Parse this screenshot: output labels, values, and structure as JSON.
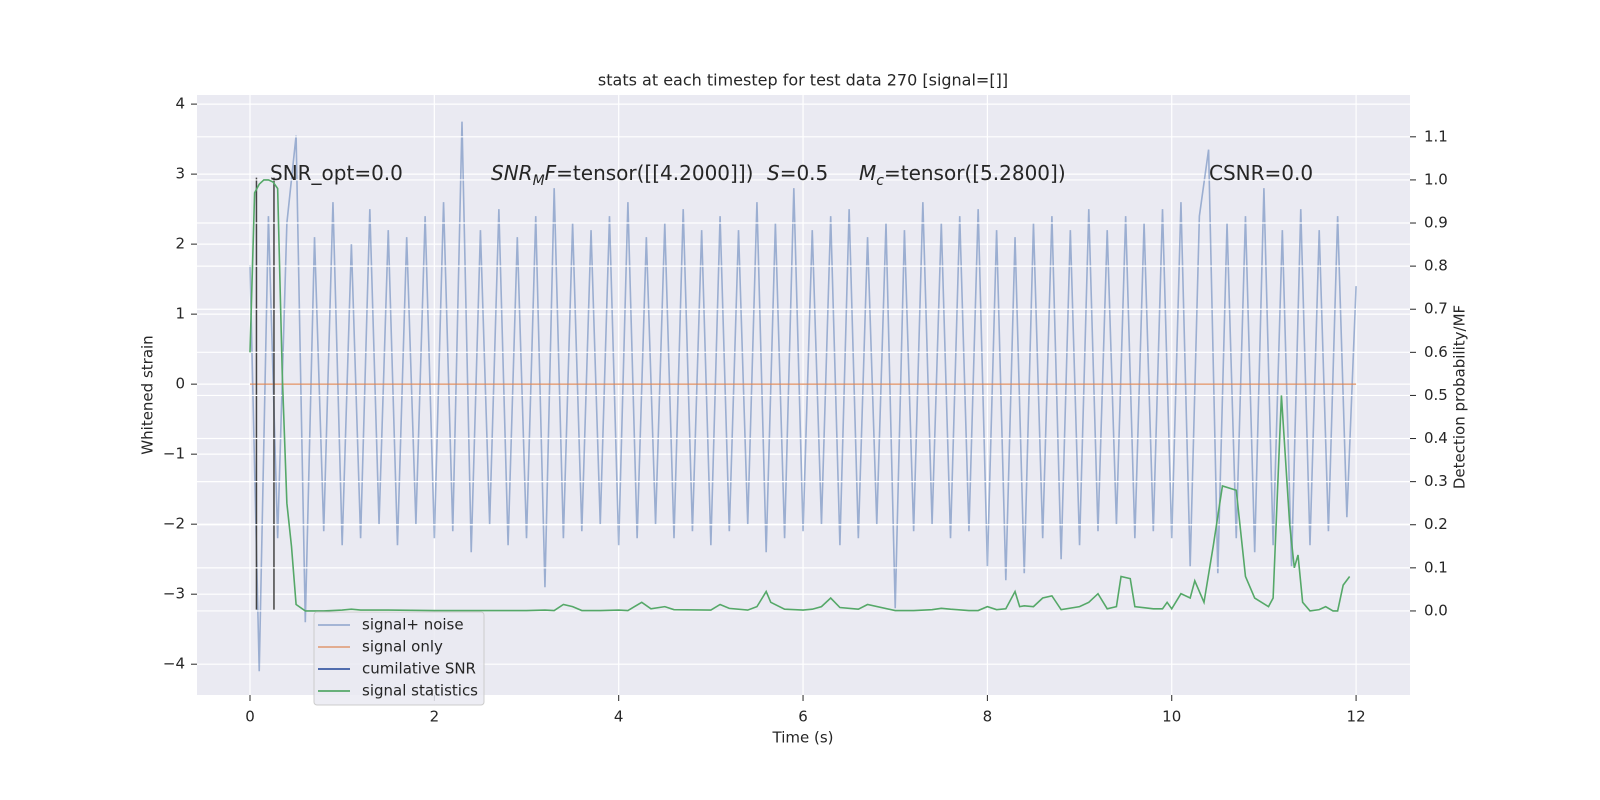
{
  "chart_data": {
    "type": "line",
    "title": "stats at each timestep for test data 270 [signal=[]]",
    "x_label": "Time (s)",
    "y_label": "Whitened strain",
    "y2_label": "Detection probability/MF",
    "xlim": [
      -0.575,
      12.585
    ],
    "ylim": [
      -4.44,
      4.13
    ],
    "y2lim": [
      -0.195,
      1.197
    ],
    "xticks": [
      0,
      2,
      4,
      6,
      8,
      10,
      12
    ],
    "yticks": [
      {
        "value": -4,
        "label": "−4"
      },
      {
        "value": -3,
        "label": "−3"
      },
      {
        "value": -2,
        "label": "−2"
      },
      {
        "value": -1,
        "label": "−1"
      },
      0,
      1,
      2,
      3,
      4
    ],
    "y2ticks": [
      {
        "value": 0,
        "label": "0.0"
      },
      {
        "value": 0.1,
        "label": "0.1"
      },
      {
        "value": 0.2,
        "label": "0.2"
      },
      {
        "value": 0.3,
        "label": "0.3"
      },
      {
        "value": 0.4,
        "label": "0.4"
      },
      {
        "value": 0.5,
        "label": "0.5"
      },
      {
        "value": 0.6,
        "label": "0.6"
      },
      {
        "value": 0.7,
        "label": "0.7"
      },
      {
        "value": 0.8,
        "label": "0.8"
      },
      {
        "value": 0.9,
        "label": "0.9"
      },
      {
        "value": 1,
        "label": "1.0"
      },
      {
        "value": 1.1,
        "label": "1.1"
      }
    ],
    "grid": true,
    "series": [
      {
        "name": "signal+ noise",
        "color": "#4c72b0",
        "opacity": 0.5,
        "x": [
          0,
          0.1,
          0.2,
          0.3,
          0.4,
          0.5,
          0.6,
          0.7,
          0.8,
          0.9,
          1,
          1.1,
          1.2,
          1.3,
          1.4,
          1.5,
          1.6,
          1.7,
          1.8,
          1.9,
          2,
          2.1,
          2.2,
          2.3,
          2.4,
          2.5,
          2.6,
          2.7,
          2.8,
          2.9,
          3,
          3.1,
          3.2,
          3.3,
          3.4,
          3.5,
          3.6,
          3.7,
          3.8,
          3.9,
          4,
          4.1,
          4.2,
          4.3,
          4.4,
          4.5,
          4.6,
          4.7,
          4.8,
          4.9,
          5,
          5.1,
          5.2,
          5.3,
          5.4,
          5.5,
          5.6,
          5.7,
          5.8,
          5.9,
          6,
          6.1,
          6.2,
          6.3,
          6.4,
          6.5,
          6.6,
          6.7,
          6.8,
          6.9,
          7,
          7.1,
          7.2,
          7.3,
          7.4,
          7.5,
          7.6,
          7.7,
          7.8,
          7.9,
          8,
          8.1,
          8.2,
          8.3,
          8.4,
          8.5,
          8.6,
          8.7,
          8.8,
          8.9,
          9,
          9.1,
          9.2,
          9.3,
          9.4,
          9.5,
          9.6,
          9.7,
          9.8,
          9.9,
          10,
          10.1,
          10.2,
          10.3,
          10.4,
          10.5,
          10.6,
          10.7,
          10.8,
          10.9,
          11,
          11.1,
          11.2,
          11.3,
          11.4,
          11.5,
          11.6,
          11.7,
          11.8,
          11.9,
          12
        ],
        "values": [
          1.7,
          -4.1,
          2.4,
          -2.2,
          2.3,
          3.55,
          -3.4,
          2.1,
          -2.1,
          2.6,
          -2.3,
          2.0,
          -2.2,
          2.5,
          -2.0,
          2.2,
          -2.3,
          2.1,
          -2.0,
          2.4,
          -2.2,
          2.6,
          -2.1,
          3.75,
          -2.4,
          2.2,
          -2.0,
          2.5,
          -2.3,
          2.1,
          -2.2,
          2.4,
          -2.9,
          2.8,
          -2.2,
          2.3,
          -2.1,
          2.2,
          -2.0,
          2.4,
          -2.3,
          2.6,
          -2.2,
          2.1,
          -2.0,
          2.3,
          -2.2,
          2.5,
          -2.1,
          2.2,
          -2.3,
          2.4,
          -2.1,
          2.2,
          -2.0,
          2.6,
          -2.4,
          2.3,
          -2.2,
          2.8,
          -2.1,
          2.2,
          -2.0,
          2.4,
          -2.3,
          2.5,
          -2.2,
          2.1,
          -2.0,
          2.3,
          -3.2,
          2.2,
          -2.1,
          2.6,
          -2.0,
          2.3,
          -2.2,
          2.4,
          -2.1,
          2.5,
          -2.6,
          2.2,
          -2.8,
          2.1,
          -2.7,
          2.3,
          -2.2,
          2.4,
          -2.5,
          2.2,
          -2.3,
          2.5,
          -2.1,
          2.2,
          -2.0,
          2.4,
          -2.2,
          2.3,
          -2.1,
          2.5,
          -2.2,
          2.6,
          -2.6,
          2.4,
          3.35,
          -2.7,
          2.3,
          -2.2,
          2.4,
          -2.4,
          2.8,
          -2.3,
          2.2,
          -2.6,
          2.5,
          -2.3,
          2.2,
          -2.1,
          2.4,
          -1.9,
          1.4
        ]
      },
      {
        "name": "signal only",
        "color": "#dd8452",
        "opacity": 0.7,
        "x": [
          0,
          12
        ],
        "values": [
          0,
          0
        ]
      },
      {
        "name": "cumilative SNR",
        "color": "#3b5ba5",
        "opacity": 1,
        "x": [],
        "values": []
      },
      {
        "name": "signal statistics",
        "color": "#55a868",
        "opacity": 1,
        "axis": "y2",
        "x": [
          0,
          0.05,
          0.1,
          0.15,
          0.2,
          0.25,
          0.3,
          0.35,
          0.4,
          0.45,
          0.5,
          0.6,
          0.8,
          1.0,
          1.1,
          1.2,
          1.5,
          2.0,
          2.5,
          3.0,
          3.2,
          3.3,
          3.4,
          3.5,
          3.6,
          3.8,
          4.0,
          4.1,
          4.25,
          4.35,
          4.5,
          4.6,
          5.0,
          5.1,
          5.2,
          5.4,
          5.5,
          5.6,
          5.65,
          5.8,
          6.0,
          6.1,
          6.2,
          6.3,
          6.4,
          6.6,
          6.7,
          7.0,
          7.2,
          7.4,
          7.5,
          7.6,
          7.8,
          7.9,
          8.0,
          8.1,
          8.2,
          8.3,
          8.35,
          8.4,
          8.5,
          8.6,
          8.7,
          8.8,
          9.0,
          9.1,
          9.2,
          9.3,
          9.4,
          9.45,
          9.55,
          9.6,
          9.8,
          9.9,
          9.95,
          10.0,
          10.1,
          10.2,
          10.25,
          10.35,
          10.45,
          10.55,
          10.7,
          10.8,
          10.9,
          11.05,
          11.1,
          11.19,
          11.28,
          11.33,
          11.37,
          11.42,
          11.5,
          11.6,
          11.67,
          11.75,
          11.8,
          11.86,
          11.93
        ],
        "values": [
          0.6,
          0.97,
          0.99,
          1.0,
          1.0,
          0.995,
          0.98,
          0.55,
          0.25,
          0.15,
          0.015,
          0.0,
          0.0,
          0.002,
          0.004,
          0.002,
          0.002,
          0.001,
          0.001,
          0.001,
          0.002,
          0.001,
          0.015,
          0.01,
          0.001,
          0.001,
          0.002,
          0.001,
          0.02,
          0.005,
          0.01,
          0.003,
          0.002,
          0.015,
          0.006,
          0.002,
          0.01,
          0.045,
          0.02,
          0.004,
          0.002,
          0.004,
          0.01,
          0.03,
          0.008,
          0.004,
          0.015,
          0.001,
          0.001,
          0.003,
          0.006,
          0.004,
          0.001,
          0.001,
          0.01,
          0.003,
          0.005,
          0.045,
          0.01,
          0.012,
          0.01,
          0.03,
          0.035,
          0.003,
          0.01,
          0.02,
          0.04,
          0.005,
          0.01,
          0.08,
          0.075,
          0.01,
          0.005,
          0.005,
          0.02,
          0.005,
          0.04,
          0.03,
          0.07,
          0.02,
          0.15,
          0.29,
          0.28,
          0.08,
          0.03,
          0.01,
          0.03,
          0.5,
          0.2,
          0.1,
          0.13,
          0.02,
          0.0,
          0.003,
          0.01,
          0.0,
          0.0,
          0.06,
          0.08
        ]
      }
    ],
    "vlines": {
      "x": [
        0.07,
        0.26
      ],
      "ymin": -3.22,
      "ymax": 2.95,
      "color": "#444444"
    },
    "annotations": [
      [
        {
          "text": "SNR_opt=0.0"
        }
      ],
      [
        {
          "math": "SNR"
        },
        {
          "sub": "M"
        },
        {
          "math": "F"
        },
        {
          "text": "=tensor([[4.2000]])"
        }
      ],
      [
        {
          "math": "S"
        },
        {
          "text": "=0.5"
        }
      ],
      [
        {
          "math": "M"
        },
        {
          "sub": "c"
        },
        {
          "text": "=tensor([5.2800])"
        }
      ],
      [
        {
          "text": "CSNR=0.0"
        }
      ]
    ]
  }
}
